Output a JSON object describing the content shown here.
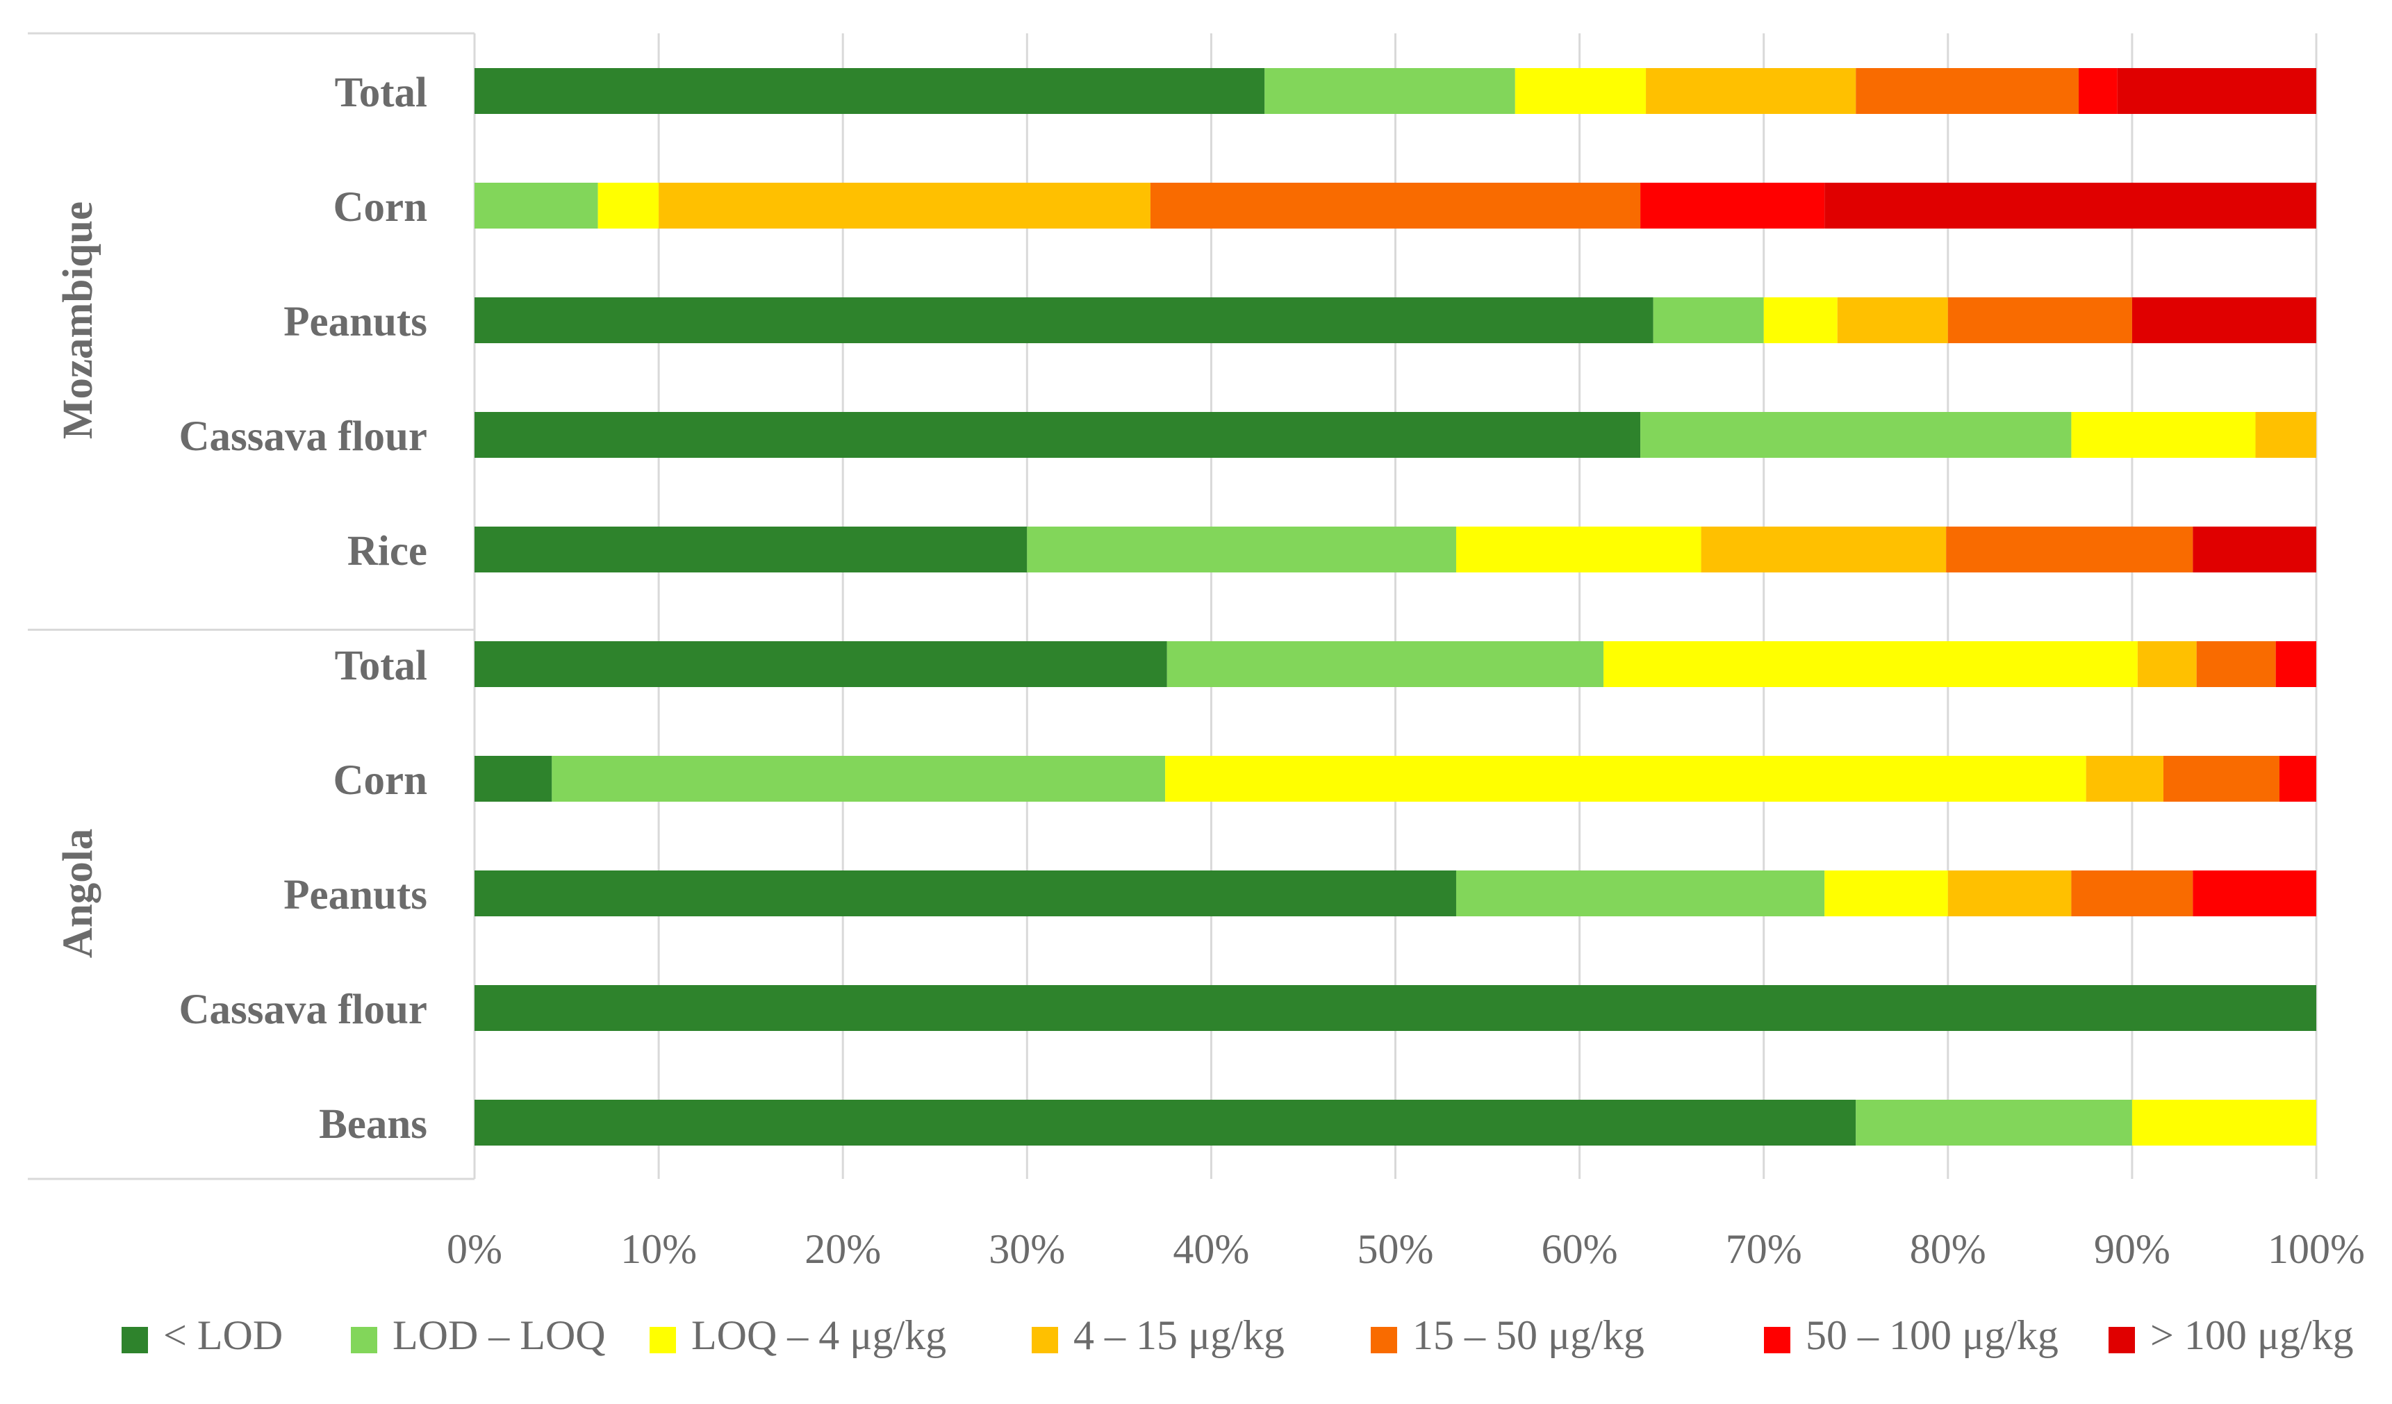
{
  "chart_data": {
    "type": "bar",
    "orientation": "horizontal",
    "stacked": "percent",
    "title": "",
    "xlabel": "",
    "ylabel": "",
    "xlim": [
      0,
      100
    ],
    "x_ticks": [
      "0%",
      "10%",
      "20%",
      "30%",
      "40%",
      "50%",
      "60%",
      "70%",
      "80%",
      "90%",
      "100%"
    ],
    "grid": true,
    "legend_position": "bottom",
    "groups": [
      {
        "name": "Mozambique",
        "categories": [
          "Total",
          "Corn",
          "Peanuts",
          "Cassava flour",
          "Rice"
        ]
      },
      {
        "name": "Angola",
        "categories": [
          "Total",
          "Corn",
          "Peanuts",
          "Cassava flour",
          "Beans"
        ]
      }
    ],
    "series": [
      {
        "name": "< LOD",
        "color": "#2e832c",
        "values": [
          42.9,
          0,
          64,
          63.3,
          30,
          37.6,
          4.2,
          53.3,
          100,
          75
        ]
      },
      {
        "name": "LOD – LOQ",
        "color": "#82d65a",
        "values": [
          13.6,
          6.7,
          6,
          23.4,
          23.3,
          23.7,
          33.3,
          20,
          0,
          15
        ]
      },
      {
        "name": "LOQ – 4 μg/kg",
        "color": "#ffff00",
        "values": [
          7.1,
          3.3,
          4,
          10,
          13.3,
          29,
          50,
          6.7,
          0,
          10
        ]
      },
      {
        "name": "4 – 15 μg/kg",
        "color": "#ffc000",
        "values": [
          11.4,
          26.7,
          6,
          3.3,
          13.3,
          3.2,
          4.2,
          6.7,
          0,
          0
        ]
      },
      {
        "name": "15 – 50 μg/kg",
        "color": "#f96b00",
        "values": [
          12.1,
          26.6,
          10,
          0,
          13.4,
          4.3,
          6.3,
          6.6,
          0,
          0
        ]
      },
      {
        "name": "50 – 100 μg/kg",
        "color": "#ff0000",
        "values": [
          2.1,
          10,
          0,
          0,
          0,
          2.2,
          2,
          6.7,
          0,
          0
        ]
      },
      {
        "name": "> 100 μg/kg",
        "color": "#e00000",
        "values": [
          10.8,
          26.7,
          10,
          0,
          6.7,
          0,
          0,
          0,
          0,
          0
        ]
      }
    ]
  }
}
